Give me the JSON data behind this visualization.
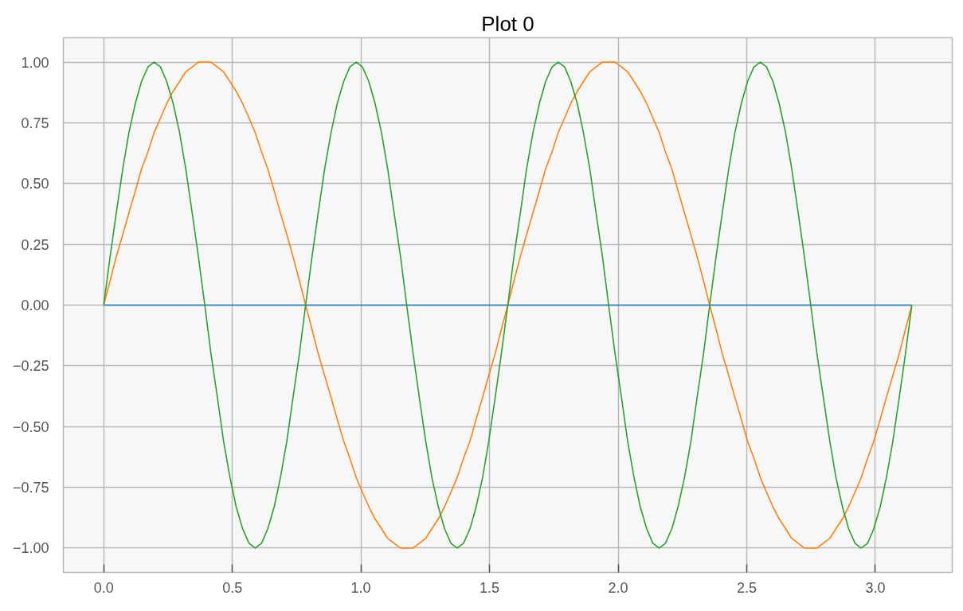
{
  "chart_data": {
    "type": "line",
    "title": "Plot 0",
    "x": [
      0,
      0.025,
      0.049,
      0.074,
      0.098,
      0.123,
      0.147,
      0.172,
      0.196,
      0.221,
      0.245,
      0.27,
      0.295,
      0.319,
      0.344,
      0.368,
      0.393,
      0.417,
      0.442,
      0.466,
      0.491,
      0.515,
      0.54,
      0.565,
      0.589,
      0.614,
      0.638,
      0.663,
      0.687,
      0.712,
      0.736,
      0.761,
      0.785,
      0.81,
      0.834,
      0.859,
      0.884,
      0.908,
      0.933,
      0.957,
      0.982,
      1.006,
      1.031,
      1.055,
      1.08,
      1.104,
      1.129,
      1.154,
      1.178,
      1.203,
      1.227,
      1.252,
      1.276,
      1.301,
      1.325,
      1.35,
      1.374,
      1.399,
      1.424,
      1.448,
      1.473,
      1.497,
      1.522,
      1.546,
      1.571,
      1.595,
      1.62,
      1.644,
      1.669,
      1.694,
      1.718,
      1.743,
      1.767,
      1.792,
      1.816,
      1.841,
      1.865,
      1.89,
      1.914,
      1.939,
      1.963,
      1.988,
      2.013,
      2.037,
      2.062,
      2.086,
      2.111,
      2.135,
      2.16,
      2.184,
      2.209,
      2.233,
      2.258,
      2.283,
      2.307,
      2.332,
      2.356,
      2.381,
      2.405,
      2.43,
      2.454,
      2.479,
      2.503,
      2.528,
      2.553,
      2.577,
      2.602,
      2.626,
      2.651,
      2.675,
      2.7,
      2.724,
      2.749,
      2.773,
      2.798,
      2.823,
      2.847,
      2.872,
      2.896,
      2.921,
      2.945,
      2.97,
      2.994,
      3.019,
      3.043,
      3.068,
      3.093,
      3.117,
      3.142
    ],
    "series": [
      {
        "color": "#1f77b4",
        "x": [
          0,
          3.142
        ],
        "values": [
          0,
          0
        ]
      },
      {
        "color": "#ff7f0e",
        "values": [
          0,
          0.1,
          0.2,
          0.29,
          0.38,
          0.47,
          0.56,
          0.63,
          0.71,
          0.77,
          0.83,
          0.88,
          0.92,
          0.96,
          0.98,
          1.0,
          1.0,
          1.0,
          0.98,
          0.96,
          0.92,
          0.88,
          0.83,
          0.77,
          0.71,
          0.63,
          0.56,
          0.47,
          0.38,
          0.29,
          0.2,
          0.1,
          0,
          -0.1,
          -0.2,
          -0.29,
          -0.38,
          -0.47,
          -0.56,
          -0.63,
          -0.71,
          -0.77,
          -0.83,
          -0.88,
          -0.92,
          -0.96,
          -0.98,
          -1.0,
          -1.0,
          -1.0,
          -0.98,
          -0.96,
          -0.92,
          -0.88,
          -0.83,
          -0.77,
          -0.71,
          -0.63,
          -0.56,
          -0.47,
          -0.38,
          -0.29,
          -0.2,
          -0.1,
          0,
          0.1,
          0.2,
          0.29,
          0.38,
          0.47,
          0.56,
          0.63,
          0.71,
          0.77,
          0.83,
          0.88,
          0.92,
          0.96,
          0.98,
          1.0,
          1.0,
          1.0,
          0.98,
          0.96,
          0.92,
          0.88,
          0.83,
          0.77,
          0.71,
          0.63,
          0.56,
          0.47,
          0.38,
          0.29,
          0.2,
          0.1,
          0,
          -0.1,
          -0.2,
          -0.29,
          -0.38,
          -0.47,
          -0.56,
          -0.63,
          -0.71,
          -0.77,
          -0.83,
          -0.88,
          -0.92,
          -0.96,
          -0.98,
          -1.0,
          -1.0,
          -1.0,
          -0.98,
          -0.96,
          -0.92,
          -0.88,
          -0.83,
          -0.77,
          -0.71,
          -0.63,
          -0.56,
          -0.47,
          -0.38,
          -0.29,
          -0.2,
          -0.1,
          0
        ]
      },
      {
        "color": "#2ca02c",
        "values": [
          0,
          0.2,
          0.38,
          0.56,
          0.71,
          0.83,
          0.92,
          0.98,
          1.0,
          0.98,
          0.92,
          0.83,
          0.71,
          0.56,
          0.38,
          0.2,
          0,
          -0.2,
          -0.38,
          -0.56,
          -0.71,
          -0.83,
          -0.92,
          -0.98,
          -1.0,
          -0.98,
          -0.92,
          -0.83,
          -0.71,
          -0.56,
          -0.38,
          -0.2,
          0,
          0.2,
          0.38,
          0.56,
          0.71,
          0.83,
          0.92,
          0.98,
          1.0,
          0.98,
          0.92,
          0.83,
          0.71,
          0.56,
          0.38,
          0.2,
          0,
          -0.2,
          -0.38,
          -0.56,
          -0.71,
          -0.83,
          -0.92,
          -0.98,
          -1.0,
          -0.98,
          -0.92,
          -0.83,
          -0.71,
          -0.56,
          -0.38,
          -0.2,
          0,
          0.2,
          0.38,
          0.56,
          0.71,
          0.83,
          0.92,
          0.98,
          1.0,
          0.98,
          0.92,
          0.83,
          0.71,
          0.56,
          0.38,
          0.2,
          0,
          -0.2,
          -0.38,
          -0.56,
          -0.71,
          -0.83,
          -0.92,
          -0.98,
          -1.0,
          -0.98,
          -0.92,
          -0.83,
          -0.71,
          -0.56,
          -0.38,
          -0.2,
          0,
          0.2,
          0.38,
          0.56,
          0.71,
          0.83,
          0.92,
          0.98,
          1.0,
          0.98,
          0.92,
          0.83,
          0.71,
          0.56,
          0.38,
          0.2,
          0,
          -0.2,
          -0.38,
          -0.56,
          -0.71,
          -0.83,
          -0.92,
          -0.98,
          -1.0,
          -0.98,
          -0.92,
          -0.83,
          -0.71,
          -0.56,
          -0.38,
          -0.2,
          0
        ]
      }
    ],
    "xlim": [
      -0.157,
      3.299
    ],
    "ylim": [
      -1.1,
      1.1
    ],
    "xticks": [
      {
        "value": 0,
        "label": "0.0"
      },
      0.5,
      {
        "value": 1,
        "label": "1.0"
      },
      1.5,
      {
        "value": 2,
        "label": "2.0"
      },
      2.5,
      {
        "value": 3,
        "label": "3.0"
      }
    ],
    "yticks": [
      {
        "value": -1,
        "label": "−1.00"
      },
      {
        "value": -0.75,
        "label": "−0.75"
      },
      {
        "value": -0.5,
        "label": "−0.50"
      },
      {
        "value": -0.25,
        "label": "−0.25"
      },
      {
        "value": 0,
        "label": "0.00"
      },
      {
        "value": 0.25,
        "label": "0.25"
      },
      {
        "value": 0.5,
        "label": "0.50"
      },
      {
        "value": 0.75,
        "label": "0.75"
      },
      {
        "value": 1,
        "label": "1.00"
      }
    ],
    "grid": true
  }
}
